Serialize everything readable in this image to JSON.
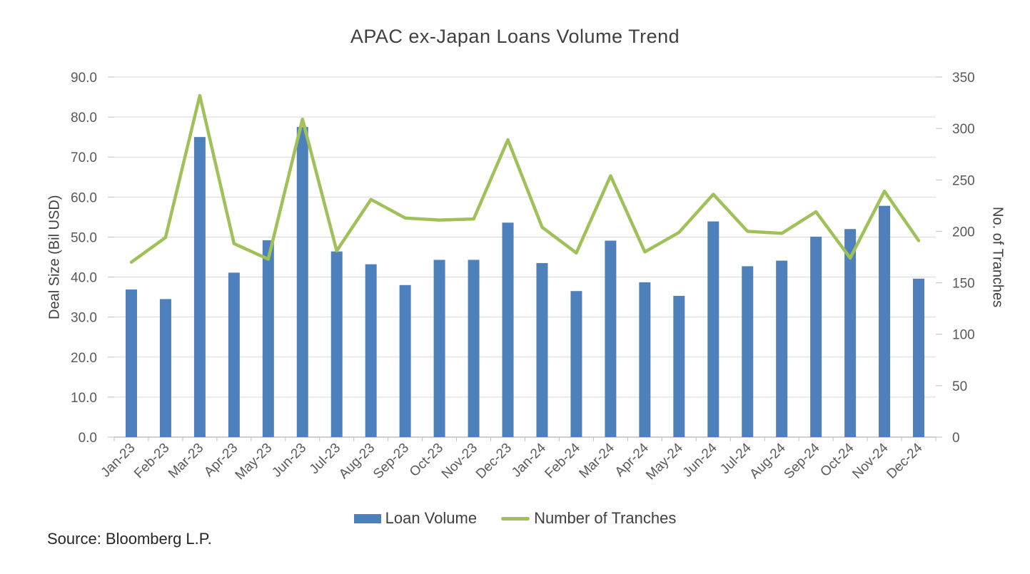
{
  "title": "APAC ex-Japan Loans Volume Trend",
  "source_note": "Source: Bloomberg L.P.",
  "chart_data": {
    "type": "combo-bar-line",
    "categories": [
      "Jan-23",
      "Feb-23",
      "Mar-23",
      "Apr-23",
      "May-23",
      "Jun-23",
      "Jul-23",
      "Aug-23",
      "Sep-23",
      "Oct-23",
      "Nov-23",
      "Dec-23",
      "Jan-24",
      "Feb-24",
      "Mar-24",
      "Apr-24",
      "May-24",
      "Jun-24",
      "Jul-24",
      "Aug-24",
      "Sep-24",
      "Oct-24",
      "Nov-24",
      "Dec-24"
    ],
    "series": [
      {
        "name": "Loan Volume",
        "type": "bar",
        "axis": "left",
        "color": "#4E80BC",
        "values": [
          36.9,
          34.5,
          75.0,
          41.1,
          49.2,
          77.5,
          46.4,
          43.2,
          38.0,
          44.3,
          44.3,
          53.6,
          43.5,
          36.5,
          49.1,
          38.7,
          35.3,
          53.9,
          42.7,
          44.1,
          50.1,
          52.0,
          57.8,
          39.6
        ]
      },
      {
        "name": "Number of Tranches",
        "type": "line",
        "axis": "right",
        "color": "#A0C05A",
        "values": [
          170,
          194,
          332,
          188,
          173,
          309,
          181,
          231,
          213,
          211,
          212,
          289,
          204,
          179,
          254,
          180,
          199,
          236,
          200,
          198,
          219,
          174,
          239,
          191
        ]
      }
    ],
    "left_axis": {
      "title": "Deal Size (Bil USD)",
      "min": 0,
      "max": 90,
      "step": 10,
      "decimals": 1
    },
    "right_axis": {
      "title": "No. of Tranches",
      "min": 0,
      "max": 350,
      "step": 50,
      "decimals": 0
    },
    "grid": "horizontal",
    "legend_position": "bottom",
    "styles": {
      "grid_color": "#D9D9D9",
      "axis_color": "#BFBFBF",
      "tick_label_color": "#595959",
      "text_color": "#404040"
    }
  }
}
